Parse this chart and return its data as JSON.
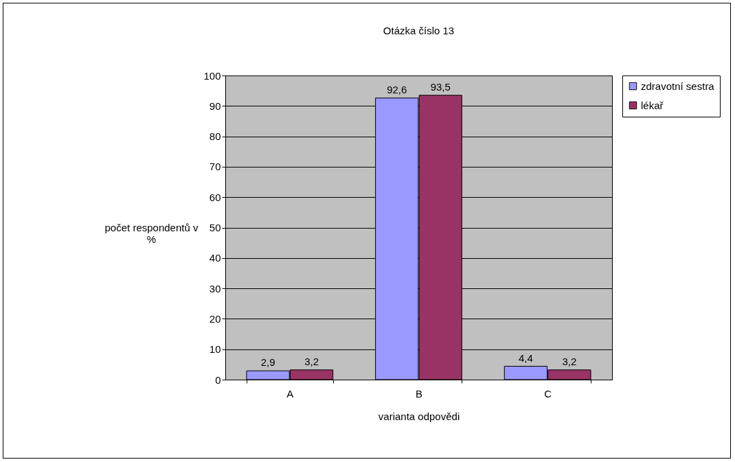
{
  "chart_data": {
    "type": "bar",
    "title": "Otázka číslo 13",
    "xlabel": "varianta odpovědi",
    "ylabel": "počet respondentů v %",
    "categories": [
      "A",
      "B",
      "C"
    ],
    "series": [
      {
        "name": "zdravotní sestra",
        "color": "#9999ff",
        "values": [
          2.9,
          92.6,
          4.4
        ],
        "value_labels": [
          "2,9",
          "92,6",
          "4,4"
        ]
      },
      {
        "name": "lékař",
        "color": "#993366",
        "values": [
          3.2,
          93.5,
          3.2
        ],
        "value_labels": [
          "3,2",
          "93,5",
          "3,2"
        ]
      }
    ],
    "ylim": [
      0,
      100
    ],
    "yticks": [
      0,
      10,
      20,
      30,
      40,
      50,
      60,
      70,
      80,
      90,
      100
    ],
    "grid": "y",
    "legend": "right"
  }
}
